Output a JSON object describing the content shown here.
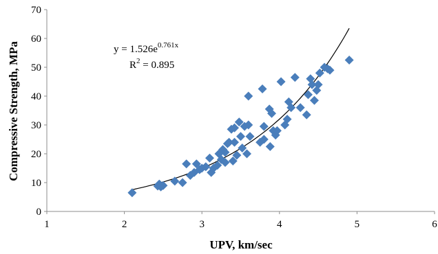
{
  "chart_data": {
    "type": "scatter",
    "title": "",
    "xlabel": "UPV, km/sec",
    "ylabel": "Compressive Strength, MPa",
    "xlim": [
      1,
      6
    ],
    "ylim": [
      0,
      70
    ],
    "x_ticks": [
      "1",
      "2",
      "3",
      "4",
      "5",
      "6"
    ],
    "y_ticks": [
      "0",
      "10",
      "20",
      "30",
      "40",
      "50",
      "60",
      "70"
    ],
    "grid": false,
    "legend": "none",
    "marker": "diamond",
    "marker_color": "#4a7ebb",
    "trendline": {
      "type": "exponential",
      "a": 1.526,
      "b": 0.761,
      "x_range": [
        2.1,
        4.9
      ],
      "color": "#000000"
    },
    "annotations": {
      "equation_base": "y = 1.526e",
      "equation_exponent": "0.761x",
      "r2_base": "R",
      "r2_sup": "2",
      "r2_value": " = 0.895"
    },
    "series": [
      {
        "x": [
          2.1,
          2.43,
          2.45,
          2.47,
          2.5,
          2.65,
          2.75,
          2.8,
          2.85,
          2.9,
          2.93,
          2.97,
          3.0,
          3.05,
          3.1,
          3.12,
          3.15,
          3.2,
          3.22,
          3.25,
          3.27,
          3.3,
          3.3,
          3.33,
          3.35,
          3.38,
          3.4,
          3.42,
          3.42,
          3.45,
          3.48,
          3.5,
          3.52,
          3.55,
          3.58,
          3.6,
          3.6,
          3.62,
          3.75,
          3.78,
          3.8,
          3.8,
          3.87,
          3.88,
          3.9,
          3.92,
          3.95,
          3.97,
          4.02,
          4.07,
          4.1,
          4.12,
          4.15,
          4.2,
          4.27,
          4.35,
          4.37,
          4.4,
          4.42,
          4.45,
          4.48,
          4.5,
          4.52,
          4.58,
          4.62,
          4.65,
          4.9
        ],
        "y": [
          6.5,
          8.8,
          9.5,
          8.5,
          9.0,
          10.5,
          10.0,
          16.5,
          12.5,
          13.5,
          16.5,
          14.5,
          15.0,
          15.5,
          18.5,
          13.5,
          15.0,
          16.0,
          20.0,
          18.0,
          21.5,
          17.0,
          20.5,
          23.5,
          24.0,
          28.5,
          17.5,
          24.0,
          29.0,
          19.5,
          31.0,
          26.0,
          22.0,
          29.5,
          20.0,
          30.0,
          40.0,
          26.0,
          24.0,
          42.5,
          25.0,
          29.5,
          35.5,
          22.5,
          34.0,
          28.0,
          26.5,
          28.0,
          45.0,
          30.0,
          32.0,
          38.0,
          36.0,
          46.5,
          36.0,
          33.5,
          40.5,
          46.0,
          44.0,
          38.5,
          42.0,
          44.0,
          48.0,
          50.0,
          49.5,
          49.0,
          52.5
        ]
      }
    ]
  }
}
